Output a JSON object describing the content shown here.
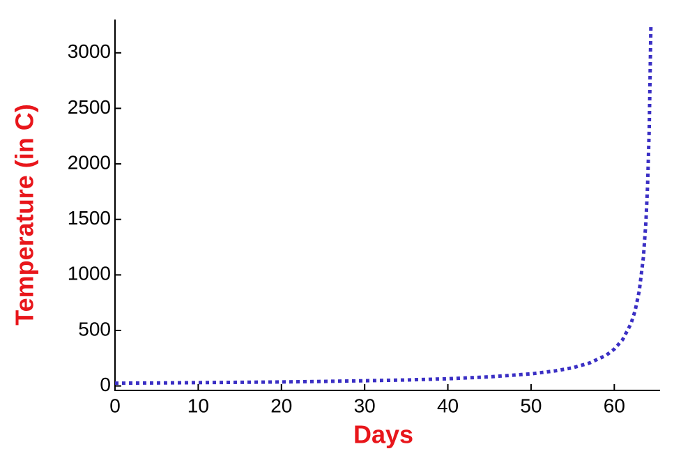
{
  "chart_data": {
    "type": "line",
    "x_label": "Days",
    "y_label": "Temperature (in C)",
    "x": [
      0,
      5,
      10,
      15,
      20,
      25,
      30,
      35,
      40,
      45,
      50,
      53,
      55,
      57,
      59,
      60,
      61,
      62,
      62.5,
      63,
      63.5,
      63.8,
      64,
      64.2,
      64.4
    ],
    "series": [
      {
        "color": "#3a2fc4",
        "values": [
          25,
          27,
          30,
          33,
          36,
          41,
          47,
          54,
          65,
          82,
          109,
          137,
          164,
          206,
          275,
          332,
          417,
          560,
          677,
          855,
          1161,
          1477,
          1806,
          2321,
          3250
        ]
      }
    ],
    "xlim": [
      0,
      65.5
    ],
    "ylim": [
      -40,
      3300
    ],
    "xticks": [
      0,
      10,
      20,
      30,
      40,
      50,
      60
    ],
    "yticks": [
      0,
      500,
      1000,
      1500,
      2000,
      2500,
      3000
    ],
    "line_style": "dotted"
  }
}
